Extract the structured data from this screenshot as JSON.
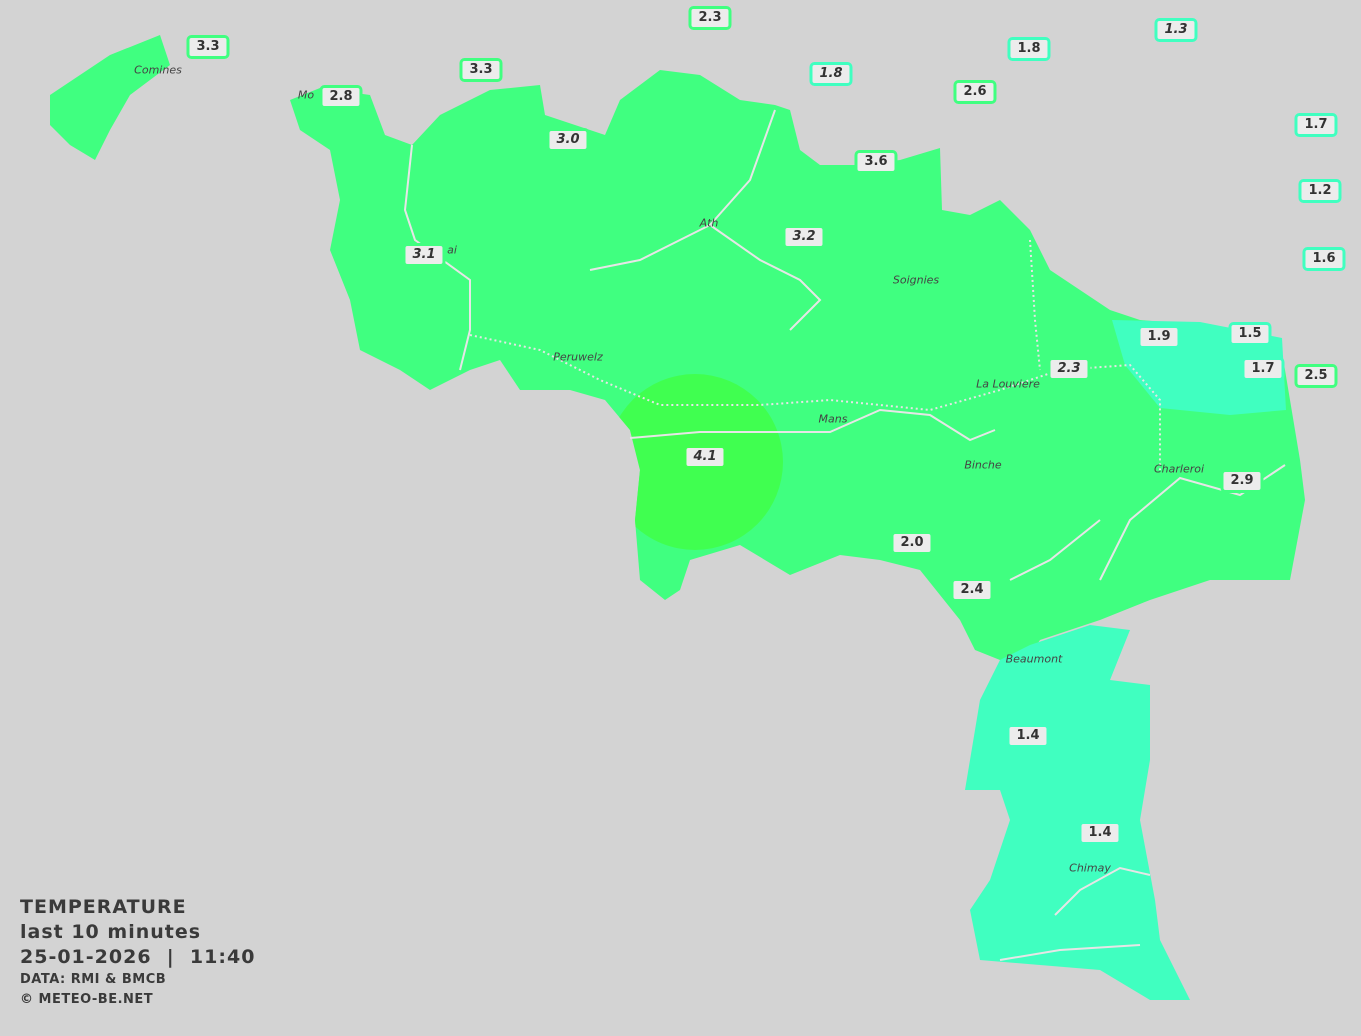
{
  "legend": {
    "title": "TEMPERATURE",
    "period": "last 10 minutes",
    "datetime": "25-01-2026  |  11:40",
    "source": "DATA: RMI & BMCB",
    "copyright": "© METEO-BE.NET"
  },
  "colors": {
    "background": "#d3d3d3",
    "below_2": "#40ffc0",
    "from_2_to_4": "#40ff80",
    "above_4": "#40ff50",
    "rivers": "#e6e6e6"
  },
  "cities": [
    "Comines",
    "Mo",
    "ai",
    "Ath",
    "Soignies",
    "Peruwelz",
    "La Louviere",
    "Mans",
    "Binche",
    "Charleroi",
    "Beaumont",
    "Chimay"
  ],
  "stations": [
    {
      "value": "2.3",
      "italic": false
    },
    {
      "value": "1.3",
      "italic": true
    },
    {
      "value": "3.3",
      "italic": false
    },
    {
      "value": "1.8",
      "italic": false
    },
    {
      "value": "3.3",
      "italic": false
    },
    {
      "value": "1.8",
      "italic": true
    },
    {
      "value": "2.8",
      "italic": false
    },
    {
      "value": "2.6",
      "italic": false
    },
    {
      "value": "1.7",
      "italic": false
    },
    {
      "value": "3.0",
      "italic": true
    },
    {
      "value": "3.6",
      "italic": false
    },
    {
      "value": "1.2",
      "italic": false
    },
    {
      "value": "3.2",
      "italic": true
    },
    {
      "value": "3.1",
      "italic": true
    },
    {
      "value": "1.6",
      "italic": false
    },
    {
      "value": "1.9",
      "italic": false
    },
    {
      "value": "1.5",
      "italic": false
    },
    {
      "value": "1.7",
      "italic": false
    },
    {
      "value": "2.3",
      "italic": true
    },
    {
      "value": "2.5",
      "italic": false
    },
    {
      "value": "4.1",
      "italic": true
    },
    {
      "value": "2.9",
      "italic": false
    },
    {
      "value": "2.0",
      "italic": false
    },
    {
      "value": "2.4",
      "italic": false
    },
    {
      "value": "1.4",
      "italic": false
    },
    {
      "value": "1.4",
      "italic": false
    }
  ]
}
